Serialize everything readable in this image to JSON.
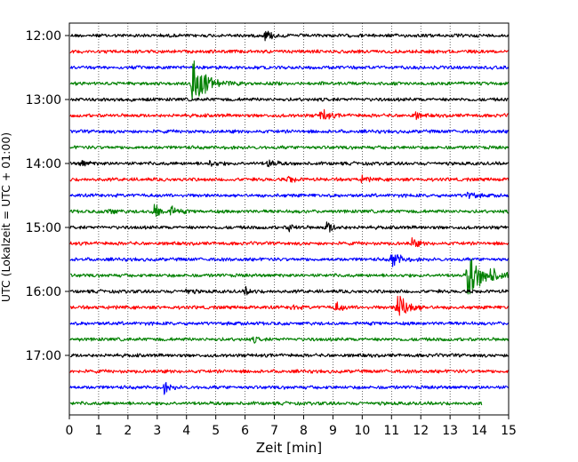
{
  "chart_data": {
    "type": "line",
    "title": "",
    "xlabel": "Zeit  [min]",
    "ylabel": "UTC (Lokalzeit = UTC + 01:00)",
    "xlim": [
      0,
      15
    ],
    "x_ticks": [
      "0",
      "1",
      "2",
      "3",
      "4",
      "5",
      "6",
      "7",
      "8",
      "9",
      "10",
      "11",
      "12",
      "13",
      "14",
      "15"
    ],
    "y_ticks": [
      "12:00",
      "13:00",
      "14:00",
      "15:00",
      "16:00",
      "17:00"
    ],
    "grid": "vertical dotted",
    "colors": [
      "#000000",
      "#ff0000",
      "#0000ff",
      "#008000"
    ],
    "traces": [
      {
        "start": "12:00",
        "color": "#000000",
        "duration_min": 15,
        "events": [
          [
            6.7,
            0.25
          ]
        ]
      },
      {
        "start": "12:15",
        "color": "#ff0000",
        "duration_min": 15,
        "events": []
      },
      {
        "start": "12:30",
        "color": "#0000ff",
        "duration_min": 15,
        "events": []
      },
      {
        "start": "12:45",
        "color": "#008000",
        "duration_min": 15,
        "events": [
          [
            4.2,
            1.0
          ]
        ]
      },
      {
        "start": "13:00",
        "color": "#000000",
        "duration_min": 15,
        "events": []
      },
      {
        "start": "13:15",
        "color": "#ff0000",
        "duration_min": 15,
        "events": [
          [
            8.6,
            0.3
          ],
          [
            11.8,
            0.15
          ]
        ]
      },
      {
        "start": "13:30",
        "color": "#0000ff",
        "duration_min": 15,
        "events": []
      },
      {
        "start": "13:45",
        "color": "#008000",
        "duration_min": 15,
        "events": []
      },
      {
        "start": "14:00",
        "color": "#000000",
        "duration_min": 15,
        "events": [
          [
            0.4,
            0.15
          ],
          [
            4.8,
            0.15
          ],
          [
            6.8,
            0.2
          ]
        ]
      },
      {
        "start": "14:15",
        "color": "#ff0000",
        "duration_min": 15,
        "events": [
          [
            7.5,
            0.15
          ],
          [
            10.0,
            0.12
          ]
        ]
      },
      {
        "start": "14:30",
        "color": "#0000ff",
        "duration_min": 15,
        "events": [
          [
            13.6,
            0.2
          ]
        ]
      },
      {
        "start": "14:45",
        "color": "#008000",
        "duration_min": 15,
        "events": [
          [
            1.3,
            0.2
          ],
          [
            2.9,
            0.35
          ],
          [
            3.5,
            0.2
          ]
        ]
      },
      {
        "start": "15:00",
        "color": "#000000",
        "duration_min": 15,
        "events": [
          [
            8.8,
            0.25
          ],
          [
            7.5,
            0.15
          ]
        ]
      },
      {
        "start": "15:15",
        "color": "#ff0000",
        "duration_min": 15,
        "events": [
          [
            11.7,
            0.2
          ]
        ]
      },
      {
        "start": "15:30",
        "color": "#0000ff",
        "duration_min": 15,
        "events": [
          [
            11.0,
            0.4
          ]
        ]
      },
      {
        "start": "15:45",
        "color": "#008000",
        "duration_min": 15,
        "events": [
          [
            13.6,
            1.0
          ],
          [
            14.3,
            0.35
          ]
        ]
      },
      {
        "start": "16:00",
        "color": "#000000",
        "duration_min": 15,
        "events": [
          [
            6.0,
            0.15
          ],
          [
            4.0,
            0.12
          ]
        ]
      },
      {
        "start": "16:15",
        "color": "#ff0000",
        "duration_min": 15,
        "events": [
          [
            11.2,
            0.7
          ],
          [
            9.1,
            0.2
          ],
          [
            7.6,
            0.12
          ]
        ]
      },
      {
        "start": "16:30",
        "color": "#0000ff",
        "duration_min": 15,
        "events": []
      },
      {
        "start": "16:45",
        "color": "#008000",
        "duration_min": 15,
        "events": [
          [
            6.3,
            0.1
          ]
        ]
      },
      {
        "start": "17:00",
        "color": "#000000",
        "duration_min": 15,
        "events": []
      },
      {
        "start": "17:15",
        "color": "#ff0000",
        "duration_min": 15,
        "events": []
      },
      {
        "start": "17:30",
        "color": "#0000ff",
        "duration_min": 15,
        "events": [
          [
            3.2,
            0.25
          ]
        ]
      },
      {
        "start": "17:45",
        "color": "#008000",
        "duration_min": 14.1,
        "events": []
      }
    ]
  }
}
